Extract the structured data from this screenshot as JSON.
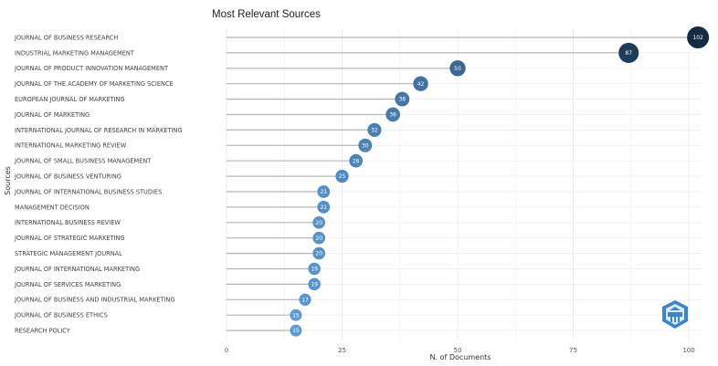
{
  "chart_data": {
    "type": "lollipop",
    "title": "Most Relevant Sources",
    "xlabel": "N. of Documents",
    "ylabel": "Sources",
    "xlim": [
      0,
      102
    ],
    "xticks": [
      0,
      25,
      50,
      75,
      100
    ],
    "grid": true,
    "categories": [
      "JOURNAL OF BUSINESS RESEARCH",
      "INDUSTRIAL MARKETING MANAGEMENT",
      "JOURNAL OF PRODUCT INNOVATION MANAGEMENT",
      "JOURNAL OF THE ACADEMY OF MARKETING SCIENCE",
      "EUROPEAN JOURNAL OF MARKETING",
      "JOURNAL OF MARKETING",
      "INTERNATIONAL JOURNAL OF RESEARCH IN MARKETING",
      "INTERNATIONAL MARKETING REVIEW",
      "JOURNAL OF SMALL BUSINESS MANAGEMENT",
      "JOURNAL OF BUSINESS VENTURING",
      "JOURNAL OF INTERNATIONAL BUSINESS STUDIES",
      "MANAGEMENT DECISION",
      "INTERNATIONAL BUSINESS REVIEW",
      "JOURNAL OF STRATEGIC MARKETING",
      "STRATEGIC MANAGEMENT JOURNAL",
      "JOURNAL OF INTERNATIONAL MARKETING",
      "JOURNAL OF SERVICES MARKETING",
      "JOURNAL OF BUSINESS AND INDUSTRIAL MARKETING",
      "JOURNAL OF BUSINESS ETHICS",
      "RESEARCH POLICY"
    ],
    "values": [
      102,
      87,
      50,
      42,
      38,
      36,
      32,
      30,
      28,
      25,
      21,
      21,
      20,
      20,
      20,
      19,
      19,
      17,
      15,
      15
    ],
    "colors": {
      "low": "#5d9bd5",
      "high": "#132b43",
      "stem": "#b5b5b5",
      "grid": "#ececec"
    }
  },
  "logo": {
    "name": "watermark-logo-icon",
    "color": "#3d86c6"
  }
}
